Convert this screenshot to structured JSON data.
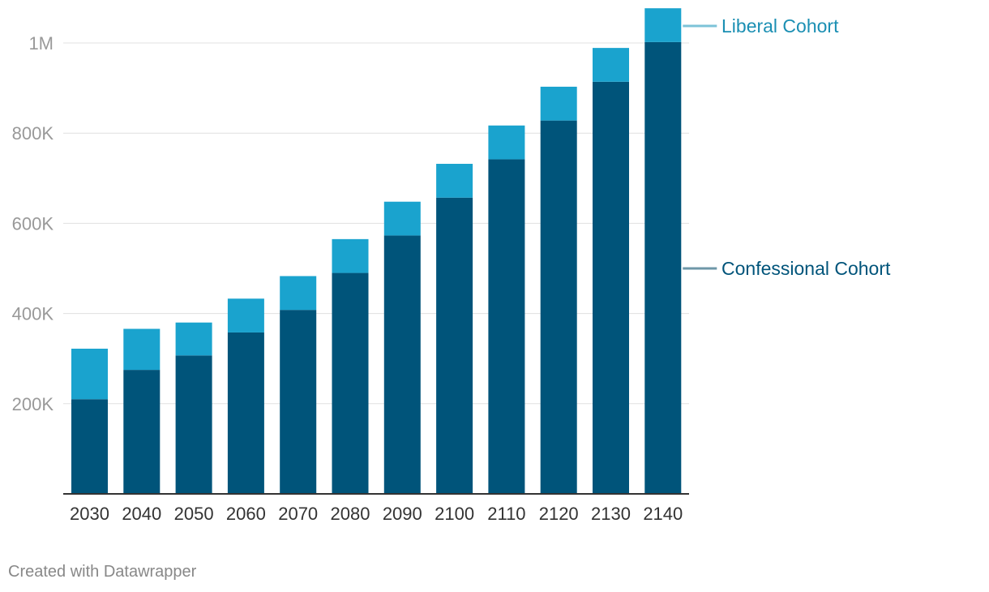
{
  "chart_data": {
    "type": "bar",
    "stacked": true,
    "title": "",
    "xlabel": "",
    "ylabel": "",
    "ylim": [
      0,
      1000000
    ],
    "y_ticks": [
      {
        "value": 200000,
        "label": "200K"
      },
      {
        "value": 400000,
        "label": "400K"
      },
      {
        "value": 600000,
        "label": "600K"
      },
      {
        "value": 800000,
        "label": "800K"
      },
      {
        "value": 1000000,
        "label": "1M"
      }
    ],
    "grid": true,
    "legend_position": "right",
    "categories": [
      "2030",
      "2040",
      "2050",
      "2060",
      "2070",
      "2080",
      "2090",
      "2100",
      "2110",
      "2120",
      "2130",
      "2140"
    ],
    "series": [
      {
        "name": "Confessional Cohort",
        "color": "#00547a",
        "values": [
          210000,
          275000,
          307000,
          358000,
          408000,
          490000,
          573000,
          657000,
          742000,
          828000,
          914000,
          1002000
        ]
      },
      {
        "name": "Liberal Cohort",
        "color": "#1aa3ce",
        "label_color": "#1b8fb3",
        "values": [
          112000,
          91000,
          73000,
          75000,
          75000,
          75000,
          75000,
          75000,
          75000,
          75000,
          75000,
          75000
        ]
      }
    ]
  },
  "footer": {
    "credit": "Created with Datawrapper"
  },
  "colors": {
    "grid": "#e0e0e0",
    "axis": "#333333",
    "tick_label": "#999999",
    "category_label": "#333333",
    "confessional_leader": "#6e97a8",
    "liberal_leader": "#7cc3d8"
  }
}
